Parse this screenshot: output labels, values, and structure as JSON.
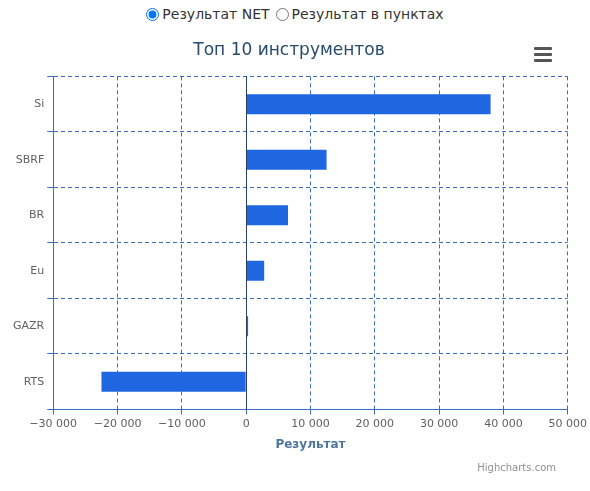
{
  "controls": [
    {
      "label": "Результат NET",
      "checked": true
    },
    {
      "label": "Результат в пунктах",
      "checked": false
    }
  ],
  "chart_data": {
    "type": "bar",
    "orientation": "horizontal",
    "title": "Топ 10 инструментов",
    "x_label": "Результат",
    "credits": "Highcharts.com",
    "categories": [
      "Si",
      "SBRF",
      "BR",
      "Eu",
      "GAZR",
      "RTS"
    ],
    "values": [
      38000,
      12500,
      6500,
      2800,
      300,
      -22500
    ],
    "color": "#1f67e0",
    "grid": true,
    "xlim": [
      -30000,
      50000
    ],
    "xticks": [
      {
        "value": -30000,
        "label": "−30 000"
      },
      {
        "value": -20000,
        "label": "−20 000"
      },
      {
        "value": -10000,
        "label": "−10 000"
      },
      0,
      {
        "value": 10000,
        "label": "10 000"
      },
      {
        "value": 20000,
        "label": "20 000"
      },
      {
        "value": 30000,
        "label": "30 000"
      },
      {
        "value": 40000,
        "label": "40 000"
      },
      {
        "value": 50000,
        "label": "50 000"
      }
    ]
  }
}
